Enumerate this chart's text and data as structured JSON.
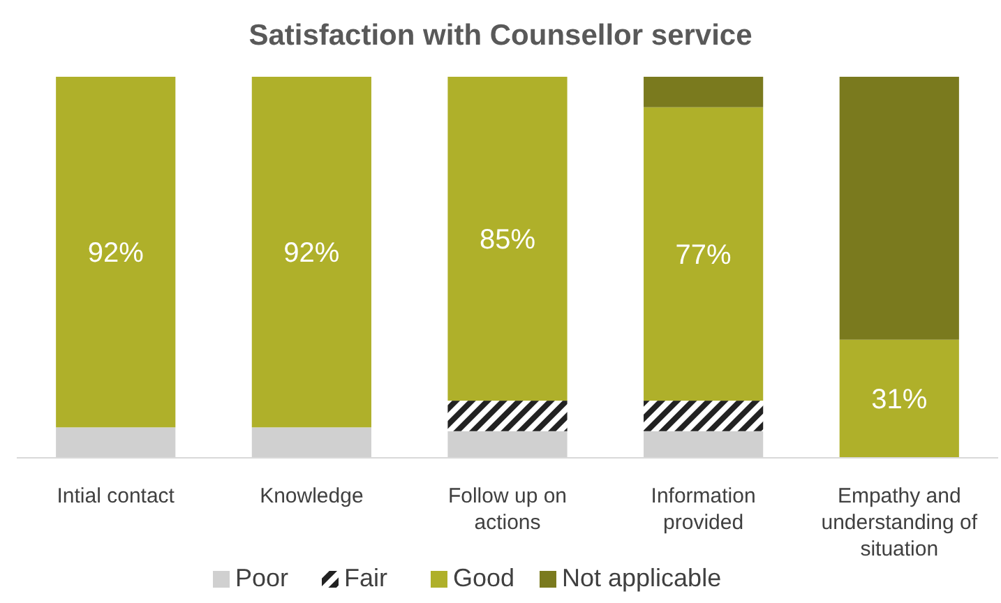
{
  "chart_data": {
    "type": "bar",
    "title": "Satisfaction with Counsellor service",
    "stacked": true,
    "legend": "bottom",
    "categories": [
      "Intial contact",
      "Knowledge",
      "Follow up on actions",
      "Information provided",
      "Empathy and understanding of situation"
    ],
    "series": [
      {
        "name": "Poor",
        "color": "#d0d0d0",
        "values": [
          8,
          8,
          7,
          7,
          0
        ]
      },
      {
        "name": "Fair",
        "color": "#222222",
        "values": [
          0,
          0,
          8,
          8,
          0
        ]
      },
      {
        "name": "Good",
        "color": "#afb02a",
        "values": [
          92,
          92,
          85,
          77,
          31
        ],
        "value_labels": [
          "92%",
          "92%",
          "85%",
          "77%",
          "31%"
        ]
      },
      {
        "name": "Not applicable",
        "color": "#7a7a1e",
        "values": [
          0,
          0,
          0,
          8,
          69
        ]
      }
    ]
  }
}
